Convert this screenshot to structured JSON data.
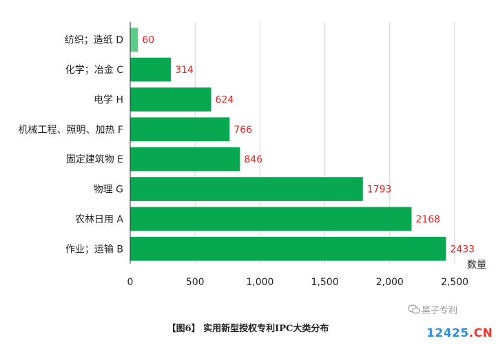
{
  "chart_data": {
    "type": "bar",
    "orientation": "horizontal",
    "categories": [
      "纺织；造纸 D",
      "化学；冶金 C",
      "电学 H",
      "机械工程、照明、加热 F",
      "固定建筑物 E",
      "物理 G",
      "农林日用 A",
      "作业；运输 B"
    ],
    "values": [
      60,
      314,
      624,
      766,
      846,
      1793,
      2168,
      2433
    ],
    "bar_colors": [
      "#5ecb8b",
      "#07a84f",
      "#07a84f",
      "#07a84f",
      "#07a84f",
      "#07a84f",
      "#07a84f",
      "#07a84f"
    ],
    "value_label_color": "#e8201e",
    "xlabel": "数量",
    "xlim": [
      0,
      2500
    ],
    "xticks": [
      0,
      500,
      1000,
      1500,
      2000,
      2500
    ],
    "xtick_labels": [
      "0",
      "500",
      "1,000",
      "1,500",
      "2,000",
      "2,500"
    ],
    "grid": "vertical",
    "caption": "【图6】  实用新型授权专利IPC大类分布"
  },
  "watermark": {
    "text": "黑子专利",
    "site_logo": [
      "12425",
      ".CN"
    ]
  }
}
